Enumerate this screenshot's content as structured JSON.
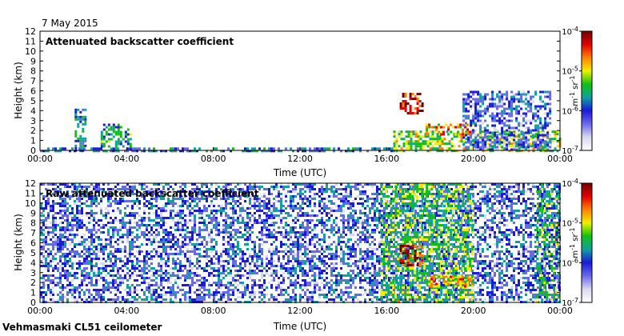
{
  "date_label": "7 May 2015",
  "footer": "Vehmasmaki CL51 ceilometer",
  "colors": {
    "colormap": [
      "#ffffff",
      "#d8d8f0",
      "#6a6ae8",
      "#1a1ad8",
      "#10a0a0",
      "#10c010",
      "#f0f000",
      "#ff8000",
      "#e00000",
      "#700000"
    ],
    "frame": "#000000"
  },
  "chart_data": [
    {
      "type": "heatmap",
      "title": "Attenuated backscatter coefficient",
      "xlabel": "Time (UTC)",
      "ylabel": "Height (km)",
      "xlim": [
        "00:00",
        "24:00"
      ],
      "ylim": [
        0,
        12
      ],
      "x_ticks": [
        "00:00",
        "04:00",
        "08:00",
        "12:00",
        "16:00",
        "20:00",
        "00:00"
      ],
      "y_ticks": [
        "0",
        "1",
        "2",
        "3",
        "4",
        "5",
        "6",
        "7",
        "8",
        "9",
        "10",
        "11",
        "12"
      ],
      "colorbar": {
        "scale": "log",
        "range": [
          1e-07,
          0.0001
        ],
        "tick_labels": [
          "10-4",
          "10-5",
          "10-6",
          "10-7"
        ],
        "label": "m-1 sr-1"
      },
      "features": [
        {
          "name": "surface layer",
          "t_start_h": 0,
          "t_end_h": 16.5,
          "top_km": 0.3,
          "level": 0.35
        },
        {
          "name": "aerosol plume",
          "t_start_h": 1.6,
          "t_end_h": 2.1,
          "top_km": 4.2,
          "level": 0.4
        },
        {
          "name": "aerosol layer",
          "t_start_h": 2.8,
          "t_end_h": 4.2,
          "top_km": 2.7,
          "level": 0.45
        },
        {
          "name": "cloud",
          "t_start_h": 16.6,
          "t_end_h": 17.6,
          "base_km": 3.8,
          "top_km": 5.8,
          "level": 0.9
        },
        {
          "name": "boundary layer",
          "t_start_h": 16.3,
          "t_end_h": 24,
          "top_km": 2.0,
          "level": 0.6
        },
        {
          "name": "cloud layer",
          "t_start_h": 17.8,
          "t_end_h": 20.0,
          "base_km": 1.6,
          "top_km": 2.7,
          "level": 0.75
        },
        {
          "name": "ice cloud",
          "t_start_h": 19.5,
          "t_end_h": 23.5,
          "top_km": 6.0,
          "level": 0.3
        }
      ]
    },
    {
      "type": "heatmap",
      "title": "Raw attenuated backscatter coefficient",
      "xlabel": "Time (UTC)",
      "ylabel": "Height (km)",
      "xlim": [
        "00:00",
        "24:00"
      ],
      "ylim": [
        0,
        12
      ],
      "x_ticks": [
        "00:00",
        "04:00",
        "08:00",
        "12:00",
        "16:00",
        "20:00",
        "00:00"
      ],
      "y_ticks": [
        "0",
        "1",
        "2",
        "3",
        "4",
        "5",
        "6",
        "7",
        "8",
        "9",
        "10",
        "11",
        "12"
      ],
      "colorbar": {
        "scale": "log",
        "range": [
          1e-07,
          0.0001
        ],
        "tick_labels": [
          "10-4",
          "10-5",
          "10-6",
          "10-7"
        ],
        "label": "m-1 sr-1"
      },
      "features": [
        {
          "name": "background noise",
          "t_start_h": 0,
          "t_end_h": 24,
          "top_km": 12,
          "level": 0.3
        },
        {
          "name": "daytime noise",
          "t_start_h": 15.7,
          "t_end_h": 20.0,
          "top_km": 12,
          "level": 0.55
        },
        {
          "name": "cloud",
          "t_start_h": 16.6,
          "t_end_h": 17.6,
          "base_km": 3.8,
          "top_km": 5.8,
          "level": 0.9
        },
        {
          "name": "cloud layer",
          "t_start_h": 17.8,
          "t_end_h": 20.0,
          "base_km": 1.6,
          "top_km": 2.7,
          "level": 0.75
        },
        {
          "name": "evening noise",
          "t_start_h": 22.9,
          "t_end_h": 24,
          "top_km": 12,
          "level": 0.5
        }
      ]
    }
  ]
}
